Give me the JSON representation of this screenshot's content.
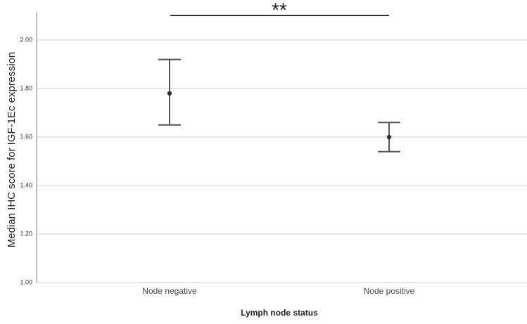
{
  "chart_data": {
    "type": "errorbar",
    "x_label": "Lymph node status",
    "y_label": "Median IHC score for IGF-1Ec expression",
    "annotation": "**",
    "categories": [
      "Node negative",
      "Node positive"
    ],
    "values": [
      1.78,
      1.6
    ],
    "lower": [
      1.65,
      1.54
    ],
    "upper": [
      1.92,
      1.66
    ],
    "color": "#555555",
    "ylim": [
      1,
      2.1
    ],
    "yticks": [
      {
        "value": 1,
        "label": "1.00"
      },
      {
        "value": 1.2,
        "label": "1.20"
      },
      {
        "value": 1.4,
        "label": "1.40"
      },
      {
        "value": 1.6,
        "label": "1.60"
      },
      {
        "value": 1.8,
        "label": "1.80"
      },
      {
        "value": 2,
        "label": "2.00"
      }
    ],
    "grid": true
  }
}
